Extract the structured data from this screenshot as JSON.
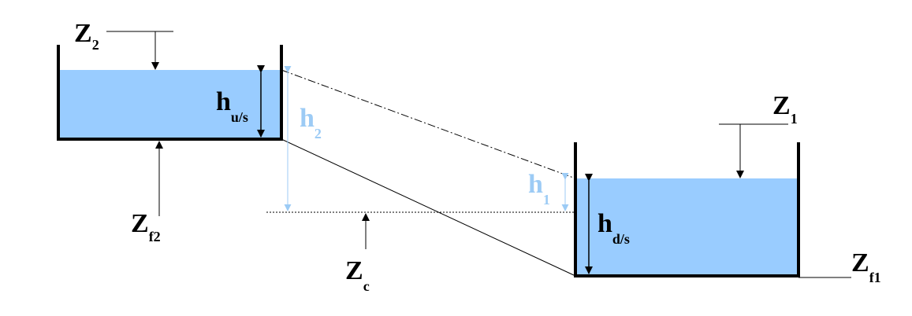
{
  "labels": {
    "z2": {
      "main": "Z",
      "sub": "2"
    },
    "z1": {
      "main": "Z",
      "sub": "1"
    },
    "zf2": {
      "main": "Z",
      "sub": "f2"
    },
    "zf1": {
      "main": "Z",
      "sub": "f1"
    },
    "zc": {
      "main": "Z",
      "sub": "c"
    },
    "hus": {
      "main": "h",
      "sub": "u/s"
    },
    "hds": {
      "main": "h",
      "sub": "d/s"
    },
    "h2": {
      "main": "h",
      "sub": "2"
    },
    "h1": {
      "main": "h",
      "sub": "1"
    }
  },
  "colors": {
    "water": "#99ccff",
    "line": "#000000",
    "head_label": "#9ccbf5"
  }
}
